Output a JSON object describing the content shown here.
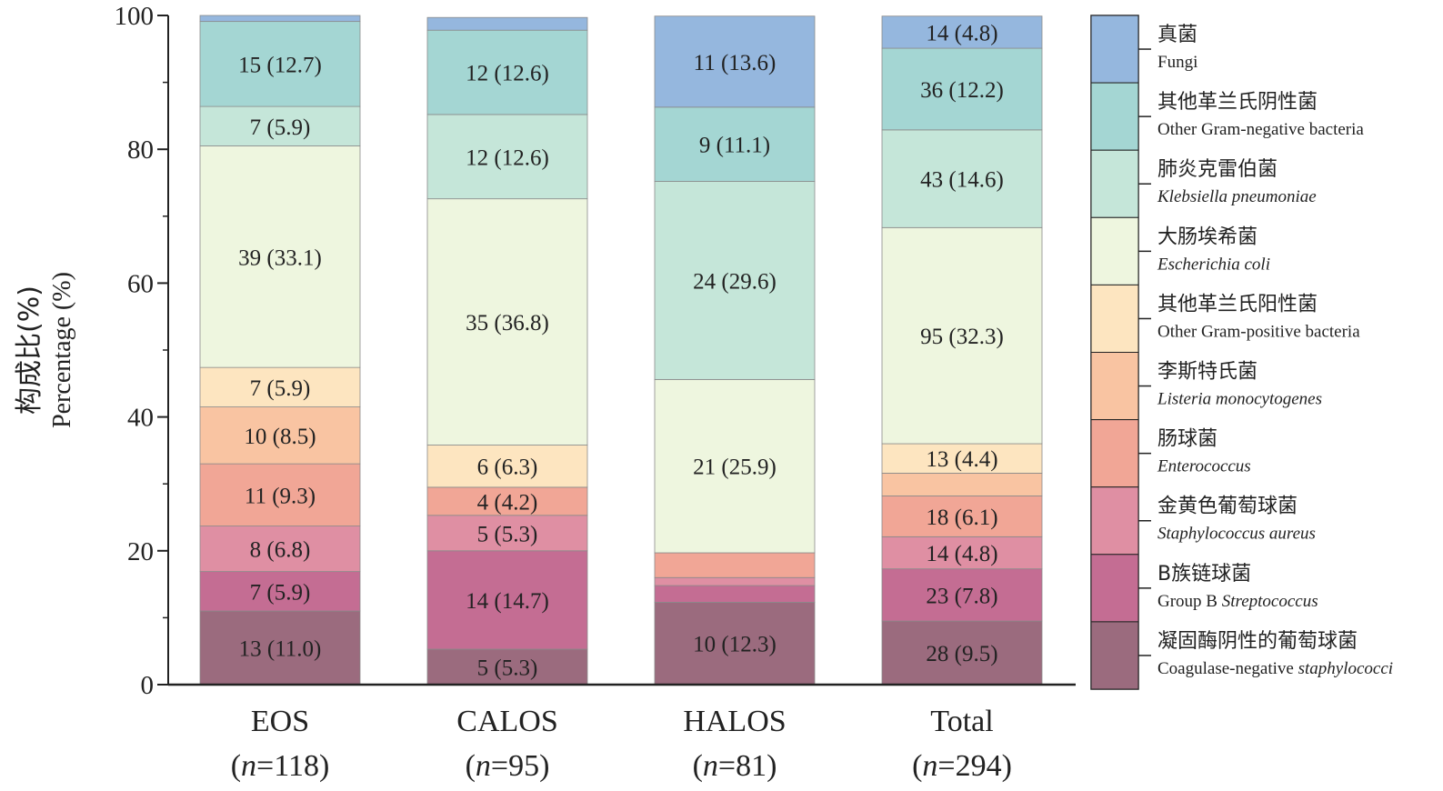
{
  "chart_data": {
    "type": "bar",
    "stacked": true,
    "ylabel_cn": "构成比(%)",
    "ylabel_en": "Percentage (%)",
    "ylim": [
      0,
      100
    ],
    "yticks": [
      "0",
      "20",
      "40",
      "60",
      "80",
      "100"
    ],
    "categories": [
      {
        "name": "EOS",
        "n": "118"
      },
      {
        "name": "CALOS",
        "n": "95"
      },
      {
        "name": "HALOS",
        "n": "81"
      },
      {
        "name": "Total",
        "n": "294"
      }
    ],
    "n_prefix": "(",
    "n_var": "n",
    "n_eq": "=",
    "n_suffix": ")",
    "series": [
      {
        "name_cn": "凝固酶阴性的葡萄球菌",
        "name_en": "Coagulase-negative ",
        "name_en_italic": "staphylococci",
        "color": "#9b6b7e",
        "values": [
          11.0,
          5.3,
          12.3,
          9.5
        ],
        "labels": [
          "13 (11.0)",
          "5 (5.3)",
          "10 (12.3)",
          "28 (9.5)"
        ]
      },
      {
        "name_cn": "B族链球菌",
        "name_en": "Group B ",
        "name_en_italic": "Streptococcus",
        "color": "#c46d93",
        "values": [
          5.9,
          14.7,
          2.5,
          7.8
        ],
        "labels": [
          "7 (5.9)",
          "14 (14.7)",
          "",
          "23 (7.8)"
        ]
      },
      {
        "name_cn": "金黄色葡萄球菌",
        "name_en": "",
        "name_en_italic": "Staphylococcus aureus",
        "color": "#df8fa3",
        "values": [
          6.8,
          5.3,
          1.2,
          4.8
        ],
        "labels": [
          "8 (6.8)",
          "5 (5.3)",
          "",
          "14 (4.8)"
        ]
      },
      {
        "name_cn": "肠球菌",
        "name_en": "",
        "name_en_italic": "Enterococcus",
        "color": "#f1a696",
        "values": [
          9.3,
          4.2,
          3.7,
          6.1
        ],
        "labels": [
          "11 (9.3)",
          "4 (4.2)",
          "",
          "18 (6.1)"
        ]
      },
      {
        "name_cn": "李斯特氏菌",
        "name_en": "",
        "name_en_italic": "Listeria monocytogenes",
        "color": "#f9c4a2",
        "values": [
          8.5,
          0.0,
          0.0,
          3.4
        ],
        "labels": [
          "10 (8.5)",
          "",
          "",
          ""
        ]
      },
      {
        "name_cn": "其他革兰氏阳性菌",
        "name_en": "Other Gram-positive bacteria",
        "name_en_italic": "",
        "color": "#fde5c0",
        "values": [
          5.9,
          6.3,
          0.0,
          4.4
        ],
        "labels": [
          "7 (5.9)",
          "6 (6.3)",
          "",
          "13 (4.4)"
        ]
      },
      {
        "name_cn": "大肠埃希菌",
        "name_en": "",
        "name_en_italic": "Escherichia coli",
        "color": "#eef6df",
        "values": [
          33.1,
          36.8,
          25.9,
          32.3
        ],
        "labels": [
          "39 (33.1)",
          "35 (36.8)",
          "21 (25.9)",
          "95 (32.3)"
        ]
      },
      {
        "name_cn": "肺炎克雷伯菌",
        "name_en": "",
        "name_en_italic": "Klebsiella pneumoniae",
        "color": "#c5e6d9",
        "values": [
          5.9,
          12.6,
          29.6,
          14.6
        ],
        "labels": [
          "7 (5.9)",
          "12 (12.6)",
          "24 (29.6)",
          "43 (14.6)"
        ]
      },
      {
        "name_cn": "其他革兰氏阴性菌",
        "name_en": "Other Gram-negative bacteria",
        "name_en_italic": "",
        "color": "#a4d6d3",
        "values": [
          12.7,
          12.6,
          11.1,
          12.2
        ],
        "labels": [
          "15 (12.7)",
          "12 (12.6)",
          "9 (11.1)",
          "36 (12.2)"
        ]
      },
      {
        "name_cn": "真菌",
        "name_en": "Fungi",
        "name_en_italic": "",
        "color": "#95b7de",
        "values": [
          0.9,
          1.9,
          13.6,
          4.8
        ],
        "labels": [
          "",
          "",
          "11 (13.6)",
          "14 (4.8)"
        ]
      }
    ],
    "legend_position": "right",
    "grid": false
  }
}
